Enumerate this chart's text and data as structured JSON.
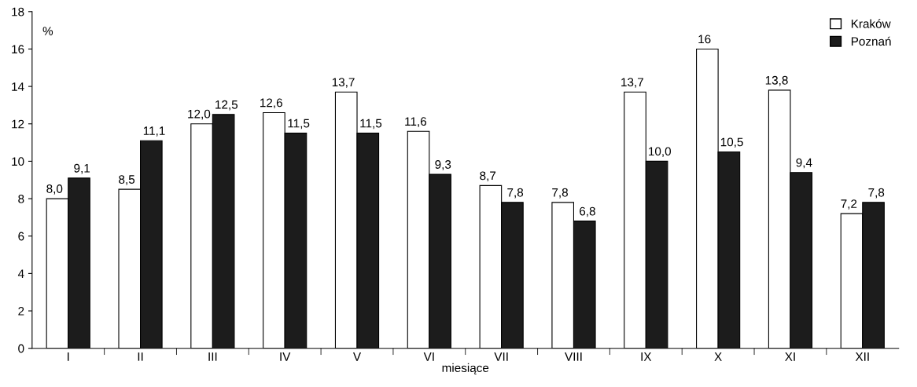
{
  "chart_data": {
    "type": "bar",
    "xlabel": "miesiące",
    "ylabel": "%",
    "categories": [
      "I",
      "II",
      "III",
      "IV",
      "V",
      "VI",
      "VII",
      "VIII",
      "IX",
      "X",
      "XI",
      "XII"
    ],
    "series": [
      {
        "name": "Kraków",
        "color": "#ffffff",
        "values": [
          8.0,
          8.5,
          12.0,
          12.6,
          13.7,
          11.6,
          8.7,
          7.8,
          13.7,
          16,
          13.8,
          7.2
        ],
        "value_labels": [
          "8,0",
          "8,5",
          "12,0",
          "12,6",
          "13,7",
          "11,6",
          "8,7",
          "7,8",
          "13,7",
          "16",
          "13,8",
          "7,2"
        ]
      },
      {
        "name": "Poznań",
        "color": "#1c1c1c",
        "values": [
          9.1,
          11.1,
          12.5,
          11.5,
          11.5,
          9.3,
          7.8,
          6.8,
          10.0,
          10.5,
          9.4,
          7.8
        ],
        "value_labels": [
          "9,1",
          "11,1",
          "12,5",
          "11,5",
          "11,5",
          "9,3",
          "7,8",
          "6,8",
          "10,0",
          "10,5",
          "9,4",
          "7,8"
        ]
      }
    ],
    "ylim": [
      0,
      18
    ],
    "yticks": [
      0,
      2,
      4,
      6,
      8,
      10,
      12,
      14,
      16,
      18
    ],
    "grid": false,
    "legend": "top right"
  }
}
